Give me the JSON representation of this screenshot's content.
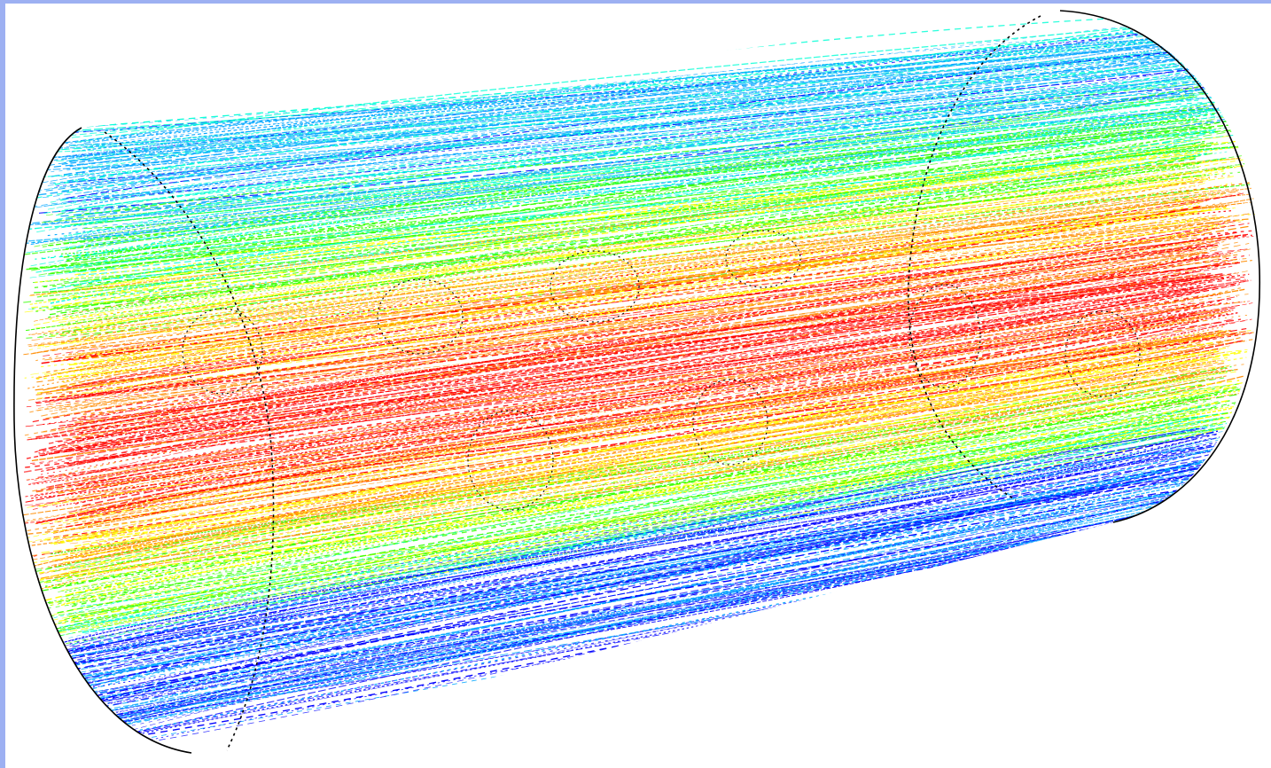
{
  "figure": {
    "type": "streamline-visualization",
    "colormap": [
      "#0000ff",
      "#00a6ff",
      "#00ffd6",
      "#36ff00",
      "#ffff00",
      "#ff8c00",
      "#ff0000"
    ],
    "object_count": 10
  }
}
